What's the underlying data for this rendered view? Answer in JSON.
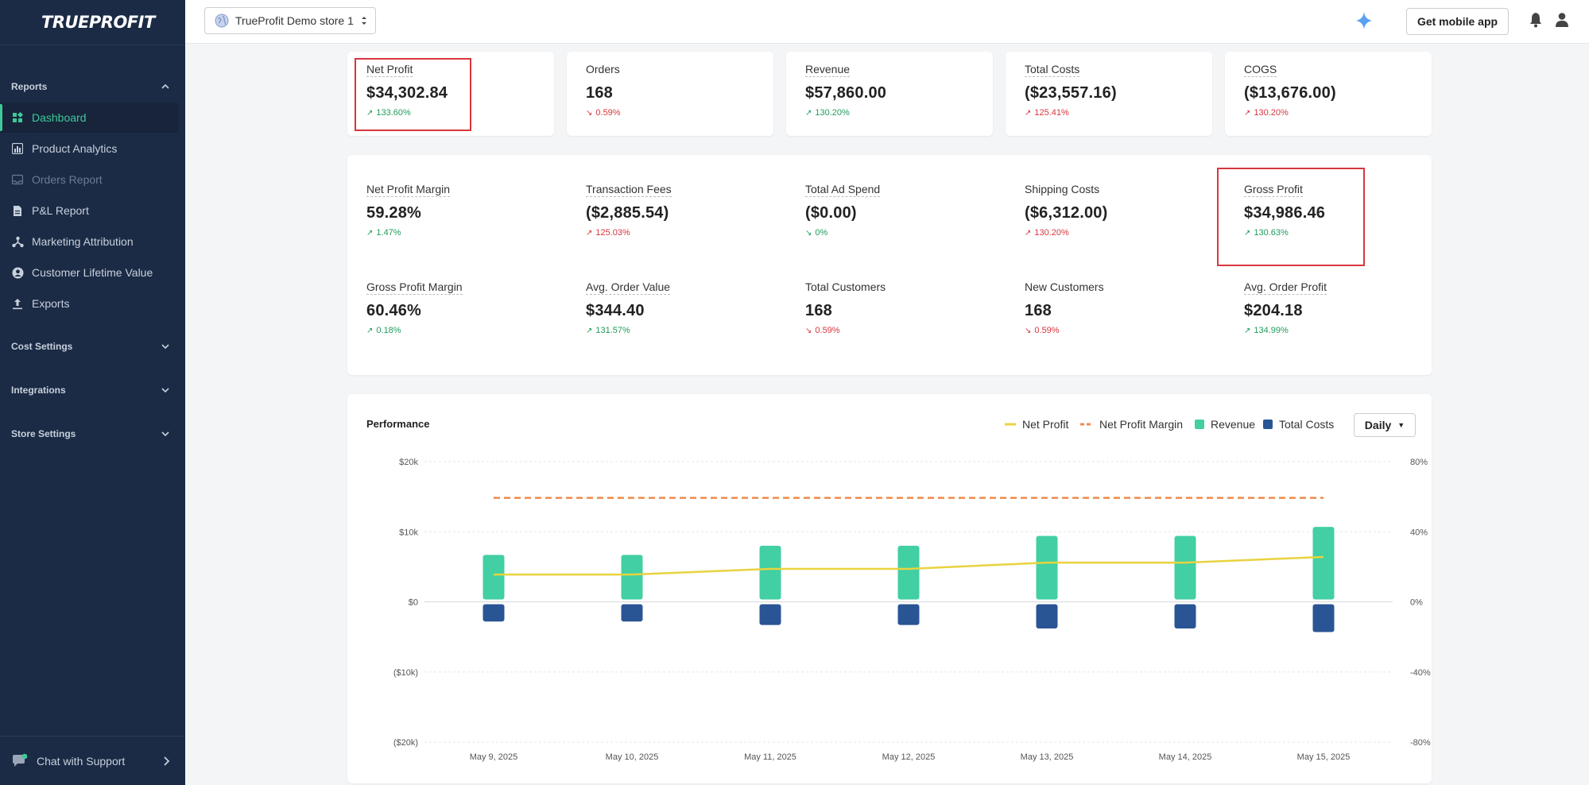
{
  "app": {
    "logo": "TRUEPROFIT"
  },
  "sidebar": {
    "sections": [
      {
        "label": "Reports"
      },
      {
        "label": "Cost Settings"
      },
      {
        "label": "Integrations"
      },
      {
        "label": "Store Settings"
      }
    ],
    "items": [
      {
        "label": "Dashboard",
        "icon": "dashboard-icon",
        "state": "active"
      },
      {
        "label": "Product Analytics",
        "icon": "bar-chart-icon"
      },
      {
        "label": "Orders Report",
        "icon": "inbox-icon",
        "state": "disabled"
      },
      {
        "label": "P&L Report",
        "icon": "document-icon"
      },
      {
        "label": "Marketing Attribution",
        "icon": "network-icon"
      },
      {
        "label": "Customer Lifetime Value",
        "icon": "user-circle-icon"
      },
      {
        "label": "Exports",
        "icon": "upload-icon"
      }
    ],
    "support": "Chat with Support"
  },
  "topbar": {
    "store": "TrueProfit Demo store 1",
    "mobile_button": "Get mobile app"
  },
  "kpis": [
    {
      "label": "Net Profit",
      "value": "$34,302.84",
      "change": "133.60%",
      "trend": "up",
      "good": true
    },
    {
      "label": "Orders",
      "value": "168",
      "change": "0.59%",
      "trend": "down",
      "good": false
    },
    {
      "label": "Revenue",
      "value": "$57,860.00",
      "change": "130.20%",
      "trend": "up",
      "good": true
    },
    {
      "label": "Total Costs",
      "value": "($23,557.16)",
      "change": "125.41%",
      "trend": "up",
      "good": false
    },
    {
      "label": "COGS",
      "value": "($13,676.00)",
      "change": "130.20%",
      "trend": "up",
      "good": false
    }
  ],
  "metrics": [
    {
      "label": "Net Profit Margin",
      "value": "59.28%",
      "change": "1.47%",
      "trend": "up",
      "good": true
    },
    {
      "label": "Transaction Fees",
      "value": "($2,885.54)",
      "change": "125.03%",
      "trend": "up",
      "good": false
    },
    {
      "label": "Total Ad Spend",
      "value": "($0.00)",
      "change": "0%",
      "trend": "down",
      "good": true
    },
    {
      "label": "Shipping Costs",
      "value": "($6,312.00)",
      "change": "130.20%",
      "trend": "up",
      "good": false
    },
    {
      "label": "Gross Profit",
      "value": "$34,986.46",
      "change": "130.63%",
      "trend": "up",
      "good": true
    },
    {
      "label": "Gross Profit Margin",
      "value": "60.46%",
      "change": "0.18%",
      "trend": "up",
      "good": true
    },
    {
      "label": "Avg. Order Value",
      "value": "$344.40",
      "change": "131.57%",
      "trend": "up",
      "good": true
    },
    {
      "label": "Total Customers",
      "value": "168",
      "change": "0.59%",
      "trend": "down",
      "good": false
    },
    {
      "label": "New Customers",
      "value": "168",
      "change": "0.59%",
      "trend": "down",
      "good": false
    },
    {
      "label": "Avg. Order Profit",
      "value": "$204.18",
      "change": "134.99%",
      "trend": "up",
      "good": true
    }
  ],
  "performance": {
    "title": "Performance",
    "period": "Daily"
  },
  "colors": {
    "revenue": "#42cfa3",
    "costs": "#2a5594",
    "net_profit": "#e8d33f",
    "margin": "#f08a4b"
  },
  "chart_data": {
    "type": "bar",
    "categories": [
      "May 9, 2025",
      "May 10, 2025",
      "May 11, 2025",
      "May 12, 2025",
      "May 13, 2025",
      "May 14, 2025",
      "May 15, 2025"
    ],
    "series": [
      {
        "name": "Revenue",
        "type": "bar",
        "axis": "left",
        "values": [
          6700,
          6700,
          8000,
          8000,
          9400,
          9400,
          10700
        ]
      },
      {
        "name": "Total Costs",
        "type": "bar",
        "axis": "left",
        "values": [
          -2800,
          -2800,
          -3300,
          -3300,
          -3800,
          -3800,
          -4300
        ]
      },
      {
        "name": "Net Profit",
        "type": "line",
        "axis": "left",
        "values": [
          3900,
          3900,
          4700,
          4700,
          5600,
          5600,
          6400
        ]
      },
      {
        "name": "Net Profit Margin",
        "type": "dashed-line",
        "axis": "right",
        "values": [
          59.3,
          59.3,
          59.3,
          59.3,
          59.3,
          59.3,
          59.3
        ]
      }
    ],
    "y_left": {
      "ticks": [
        "$20k",
        "$10k",
        "$0",
        "($10k)",
        "($20k)"
      ],
      "tick_values": [
        20000,
        10000,
        0,
        -10000,
        -20000
      ],
      "range": [
        -20000,
        20000
      ]
    },
    "y_right": {
      "ticks": [
        "80%",
        "40%",
        "0%",
        "-40%",
        "-80%"
      ],
      "tick_values": [
        80,
        40,
        0,
        -40,
        -80
      ],
      "range": [
        -80,
        80
      ]
    },
    "grid": true,
    "legend_position": "top-right"
  }
}
